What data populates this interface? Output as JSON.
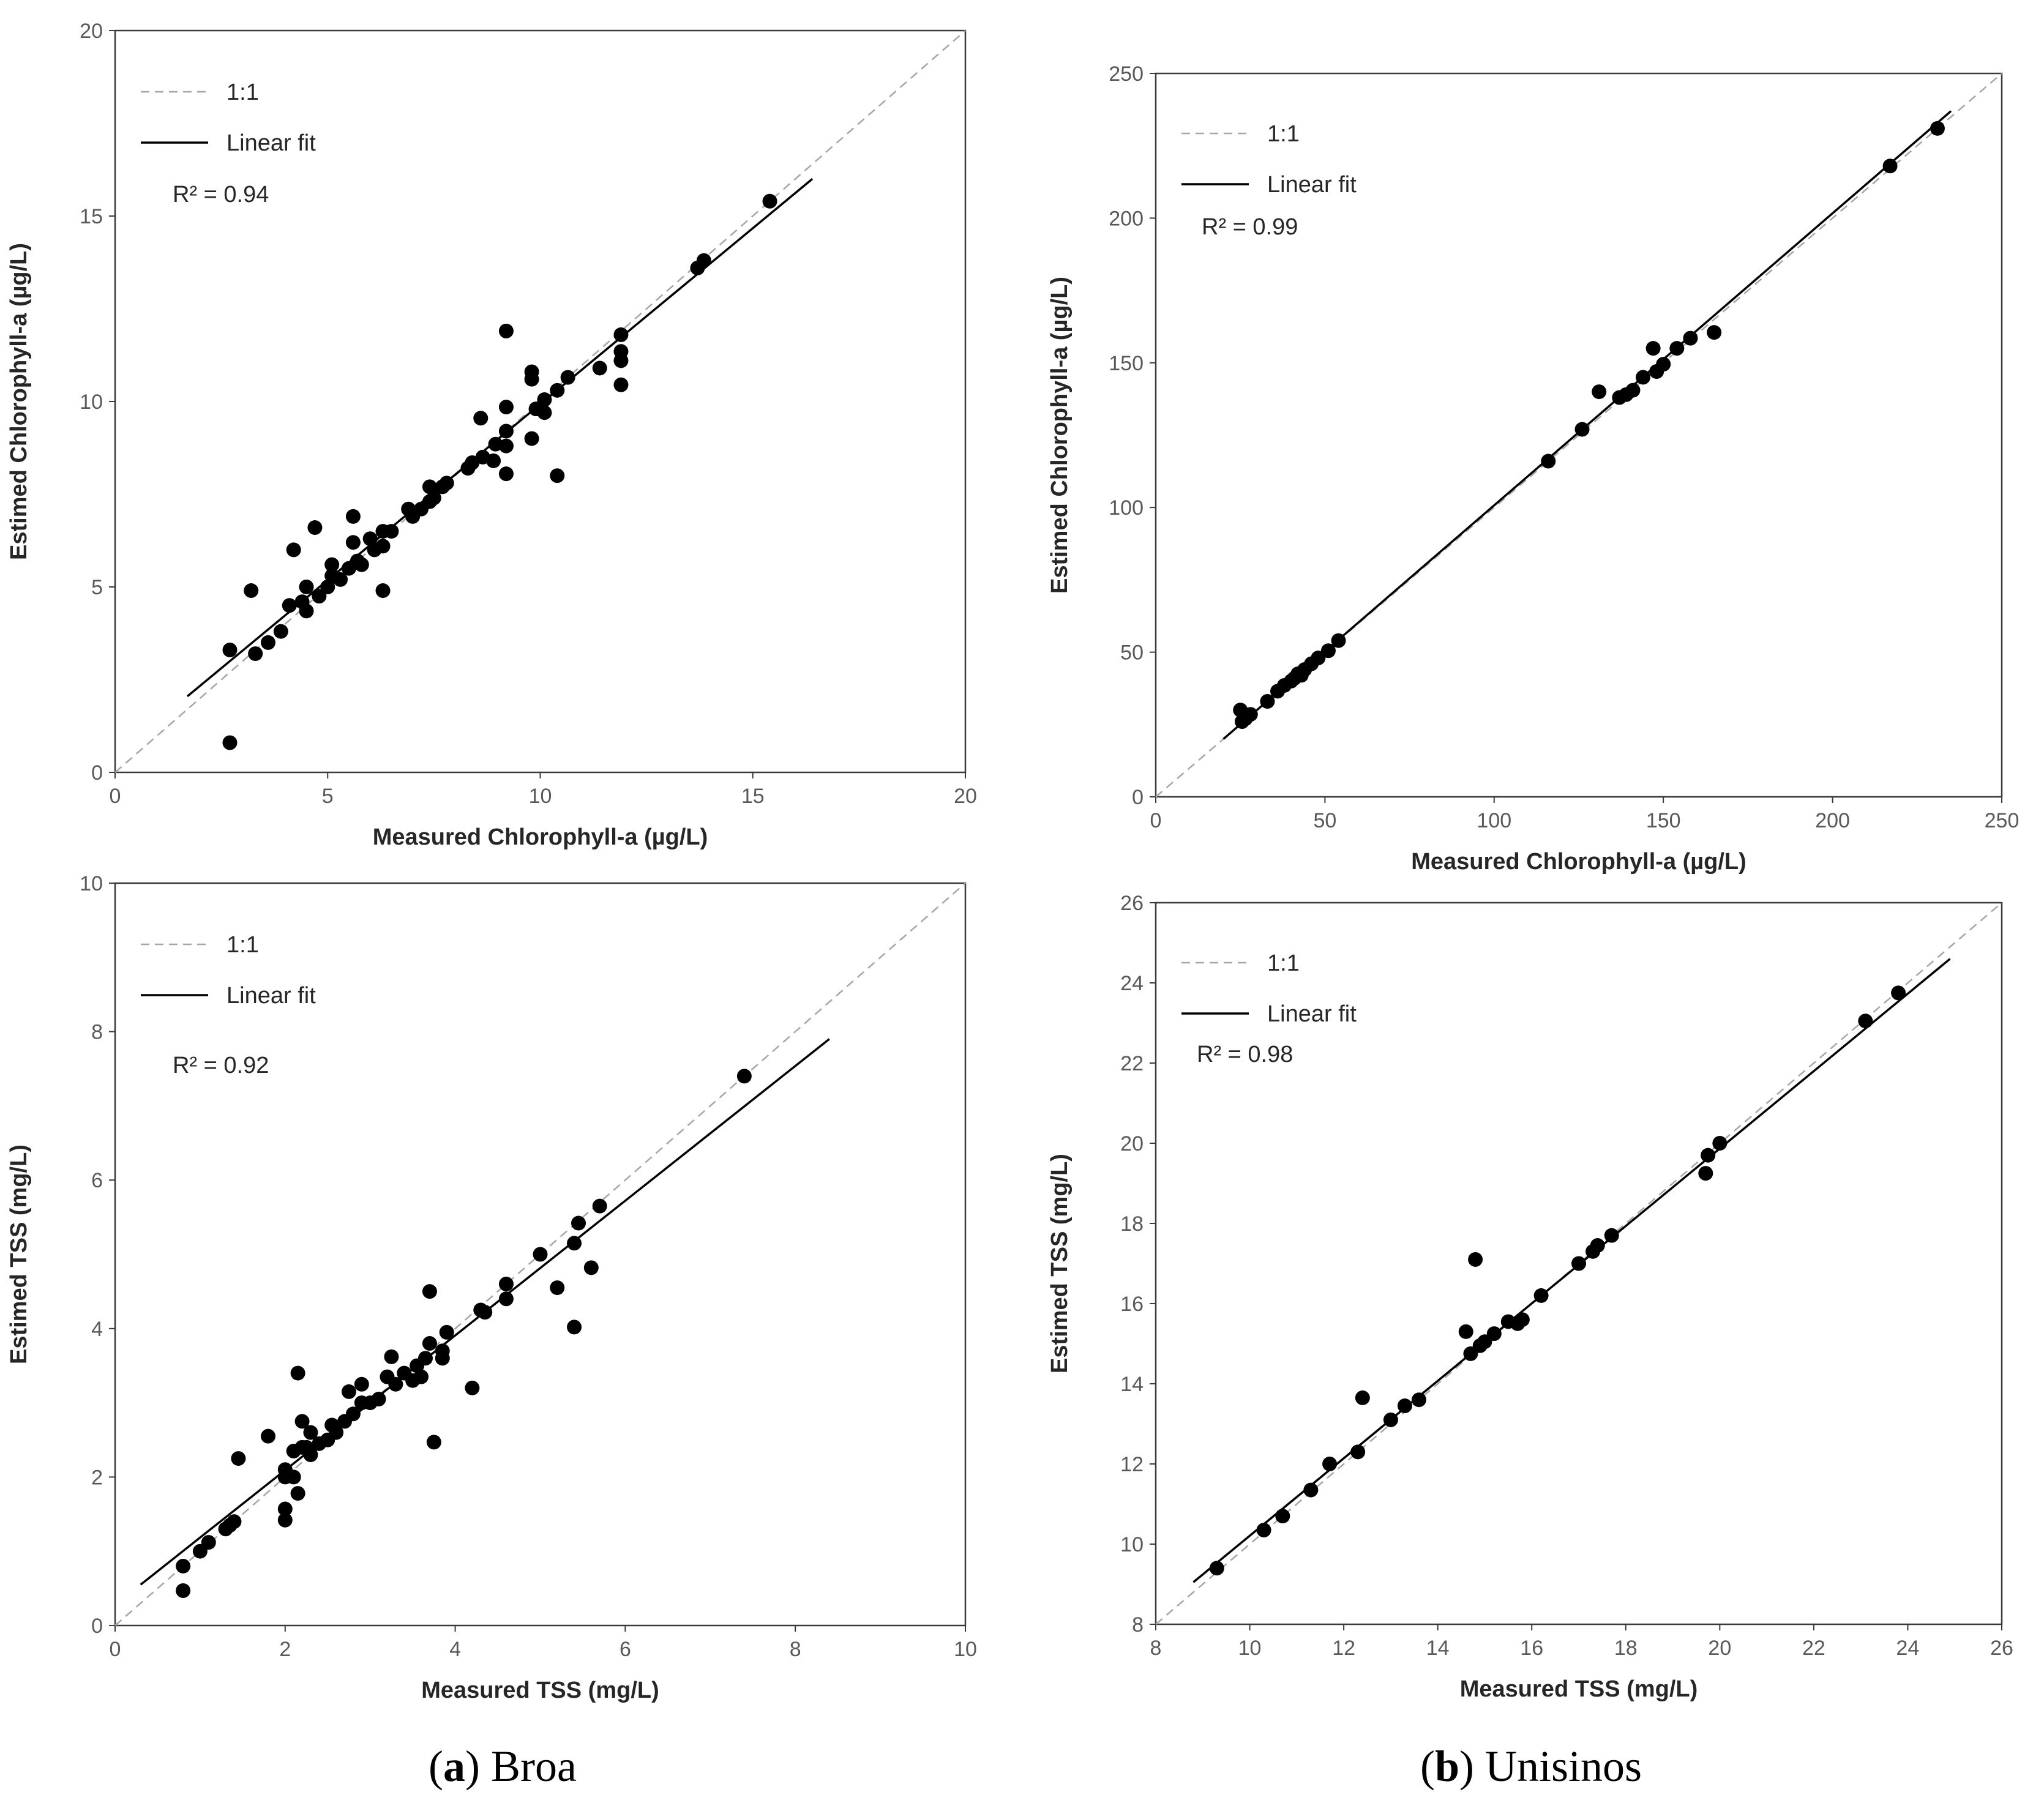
{
  "captions": {
    "a": {
      "letter": "(a)",
      "name": "Broa"
    },
    "b": {
      "letter": "(b)",
      "name": "Unisinos"
    }
  },
  "chart_data": [
    {
      "id": "broa-chla",
      "type": "scatter",
      "xlabel": "Measured Chlorophyll-a (µg/L)",
      "ylabel": "Estimed Chlorophyll-a (µg/L)",
      "xlim": [
        0,
        20
      ],
      "ylim": [
        0,
        20
      ],
      "xticks": [
        0,
        5,
        10,
        15,
        20
      ],
      "yticks": [
        0,
        5,
        10,
        15,
        20
      ],
      "legend": [
        "1:1",
        "Linear fit"
      ],
      "annotation": "R² = 0.94",
      "fit": {
        "x": [
          1.7,
          16.4
        ],
        "y": [
          2.05,
          16.0
        ]
      },
      "points": [
        [
          2.7,
          3.3
        ],
        [
          2.7,
          0.8
        ],
        [
          3.2,
          4.9
        ],
        [
          3.3,
          3.2
        ],
        [
          3.6,
          3.5
        ],
        [
          3.9,
          3.8
        ],
        [
          4.1,
          4.5
        ],
        [
          4.2,
          6.0
        ],
        [
          4.4,
          4.6
        ],
        [
          4.5,
          5.0
        ],
        [
          4.5,
          4.35
        ],
        [
          4.7,
          6.6
        ],
        [
          4.8,
          4.75
        ],
        [
          5.0,
          5.0
        ],
        [
          5.1,
          5.6
        ],
        [
          5.1,
          5.3
        ],
        [
          5.3,
          5.2
        ],
        [
          5.5,
          5.5
        ],
        [
          5.6,
          6.9
        ],
        [
          5.6,
          6.2
        ],
        [
          5.7,
          5.7
        ],
        [
          5.8,
          5.6
        ],
        [
          6.0,
          6.3
        ],
        [
          6.1,
          6.0
        ],
        [
          6.3,
          6.5
        ],
        [
          6.3,
          4.9
        ],
        [
          6.3,
          6.1
        ],
        [
          6.5,
          6.5
        ],
        [
          6.9,
          7.1
        ],
        [
          7.0,
          6.9
        ],
        [
          7.2,
          7.1
        ],
        [
          7.4,
          7.3
        ],
        [
          7.4,
          7.7
        ],
        [
          7.5,
          7.4
        ],
        [
          7.7,
          7.7
        ],
        [
          7.8,
          7.8
        ],
        [
          8.3,
          8.2
        ],
        [
          8.4,
          8.35
        ],
        [
          8.6,
          9.55
        ],
        [
          8.65,
          8.5
        ],
        [
          8.9,
          8.4
        ],
        [
          8.95,
          8.85
        ],
        [
          9.2,
          9.2
        ],
        [
          9.2,
          9.85
        ],
        [
          9.2,
          8.05
        ],
        [
          9.2,
          11.9
        ],
        [
          9.2,
          8.8
        ],
        [
          9.8,
          9.0
        ],
        [
          9.8,
          10.8
        ],
        [
          9.8,
          10.6
        ],
        [
          9.9,
          9.8
        ],
        [
          10.1,
          10.05
        ],
        [
          10.1,
          9.7
        ],
        [
          10.4,
          8.0
        ],
        [
          10.4,
          10.3
        ],
        [
          10.65,
          10.65
        ],
        [
          11.4,
          10.9
        ],
        [
          11.9,
          11.8
        ],
        [
          11.9,
          11.35
        ],
        [
          11.9,
          11.1
        ],
        [
          11.9,
          10.45
        ],
        [
          13.7,
          13.6
        ],
        [
          13.85,
          13.8
        ],
        [
          15.4,
          15.4
        ]
      ]
    },
    {
      "id": "unisinos-chla",
      "type": "scatter",
      "xlabel": "Measured Chlorophyll-a (µg/L)",
      "ylabel": "Estimed Chlorophyll-a (µg/L)",
      "xlim": [
        0,
        250
      ],
      "ylim": [
        0,
        250
      ],
      "xticks": [
        0,
        50,
        100,
        150,
        200,
        250
      ],
      "yticks": [
        0,
        50,
        100,
        150,
        200,
        250
      ],
      "legend": [
        "1:1",
        "Linear fit"
      ],
      "annotation": "R² = 0.99",
      "fit": {
        "x": [
          20,
          235
        ],
        "y": [
          20,
          237
        ]
      },
      "points": [
        [
          25,
          30
        ],
        [
          25.5,
          26
        ],
        [
          26.5,
          27
        ],
        [
          28,
          28.5
        ],
        [
          33,
          33
        ],
        [
          36,
          36.5
        ],
        [
          38,
          38.5
        ],
        [
          40,
          40
        ],
        [
          41,
          41
        ],
        [
          42,
          42.5
        ],
        [
          43,
          42
        ],
        [
          44,
          44
        ],
        [
          46,
          46
        ],
        [
          48,
          48
        ],
        [
          51,
          50.5
        ],
        [
          54,
          54
        ],
        [
          116,
          116
        ],
        [
          126,
          127
        ],
        [
          131,
          140
        ],
        [
          137,
          138
        ],
        [
          139,
          139
        ],
        [
          141,
          140.5
        ],
        [
          144,
          145
        ],
        [
          147,
          155
        ],
        [
          148,
          147
        ],
        [
          150,
          149.5
        ],
        [
          154,
          155
        ],
        [
          158,
          158.5
        ],
        [
          165,
          160.5
        ],
        [
          217,
          218
        ],
        [
          231,
          231
        ]
      ]
    },
    {
      "id": "broa-tss",
      "type": "scatter",
      "xlabel": "Measured TSS (mg/L)",
      "ylabel": "Estimed TSS (mg/L)",
      "xlim": [
        0,
        10
      ],
      "ylim": [
        0,
        10
      ],
      "xticks": [
        0,
        2,
        4,
        6,
        8,
        10
      ],
      "yticks": [
        0,
        2,
        4,
        6,
        8,
        10
      ],
      "legend": [
        "1:1",
        "Linear fit"
      ],
      "annotation": "R² = 0.92",
      "fit": {
        "x": [
          0.3,
          8.4
        ],
        "y": [
          0.55,
          7.9
        ]
      },
      "points": [
        [
          0.8,
          0.8
        ],
        [
          0.8,
          0.47
        ],
        [
          1.0,
          1.0
        ],
        [
          1.1,
          1.12
        ],
        [
          1.3,
          1.3
        ],
        [
          1.35,
          1.35
        ],
        [
          1.4,
          1.4
        ],
        [
          1.45,
          2.25
        ],
        [
          1.8,
          2.55
        ],
        [
          2.0,
          2.0
        ],
        [
          2.0,
          2.1
        ],
        [
          2.0,
          1.57
        ],
        [
          2.0,
          1.42
        ],
        [
          2.1,
          2.35
        ],
        [
          2.1,
          2.0
        ],
        [
          2.15,
          3.4
        ],
        [
          2.15,
          1.78
        ],
        [
          2.2,
          2.75
        ],
        [
          2.2,
          2.4
        ],
        [
          2.25,
          2.4
        ],
        [
          2.3,
          2.3
        ],
        [
          2.3,
          2.6
        ],
        [
          2.4,
          2.45
        ],
        [
          2.5,
          2.5
        ],
        [
          2.55,
          2.7
        ],
        [
          2.6,
          2.6
        ],
        [
          2.7,
          2.75
        ],
        [
          2.75,
          3.15
        ],
        [
          2.8,
          2.85
        ],
        [
          2.9,
          3.0
        ],
        [
          2.9,
          3.25
        ],
        [
          3.0,
          3.0
        ],
        [
          3.1,
          3.05
        ],
        [
          3.2,
          3.35
        ],
        [
          3.25,
          3.62
        ],
        [
          3.3,
          3.25
        ],
        [
          3.4,
          3.4
        ],
        [
          3.5,
          3.3
        ],
        [
          3.55,
          3.5
        ],
        [
          3.6,
          3.35
        ],
        [
          3.65,
          3.6
        ],
        [
          3.7,
          4.5
        ],
        [
          3.7,
          3.8
        ],
        [
          3.75,
          2.47
        ],
        [
          3.85,
          3.7
        ],
        [
          3.85,
          3.6
        ],
        [
          3.9,
          3.95
        ],
        [
          4.2,
          3.2
        ],
        [
          4.3,
          4.25
        ],
        [
          4.35,
          4.22
        ],
        [
          4.6,
          4.6
        ],
        [
          4.6,
          4.4
        ],
        [
          5.0,
          5.0
        ],
        [
          5.2,
          4.55
        ],
        [
          5.4,
          5.15
        ],
        [
          5.4,
          4.02
        ],
        [
          5.45,
          5.42
        ],
        [
          5.6,
          4.82
        ],
        [
          5.7,
          5.65
        ],
        [
          7.4,
          7.4
        ]
      ]
    },
    {
      "id": "unisinos-tss",
      "type": "scatter",
      "xlabel": "Measured TSS (mg/L)",
      "ylabel": "Estimed TSS (mg/L)",
      "xlim": [
        8,
        26
      ],
      "ylim": [
        8,
        26
      ],
      "xticks": [
        8,
        10,
        12,
        14,
        16,
        18,
        20,
        22,
        24,
        26
      ],
      "yticks": [
        8,
        10,
        12,
        14,
        16,
        18,
        20,
        22,
        24,
        26
      ],
      "legend": [
        "1:1",
        "Linear fit"
      ],
      "annotation": "R² = 0.98",
      "fit": {
        "x": [
          8.8,
          24.9
        ],
        "y": [
          9.05,
          24.6
        ]
      },
      "points": [
        [
          9.3,
          9.4
        ],
        [
          10.3,
          10.35
        ],
        [
          10.7,
          10.7
        ],
        [
          11.3,
          11.35
        ],
        [
          11.7,
          12.0
        ],
        [
          12.3,
          12.3
        ],
        [
          12.4,
          13.65
        ],
        [
          13.0,
          13.1
        ],
        [
          13.3,
          13.45
        ],
        [
          13.6,
          13.6
        ],
        [
          14.6,
          15.3
        ],
        [
          14.7,
          14.75
        ],
        [
          14.8,
          17.1
        ],
        [
          14.9,
          14.95
        ],
        [
          15.0,
          15.05
        ],
        [
          15.2,
          15.25
        ],
        [
          15.5,
          15.55
        ],
        [
          15.7,
          15.5
        ],
        [
          15.8,
          15.6
        ],
        [
          16.2,
          16.2
        ],
        [
          17.0,
          17.0
        ],
        [
          17.3,
          17.3
        ],
        [
          17.4,
          17.45
        ],
        [
          17.7,
          17.7
        ],
        [
          19.7,
          19.25
        ],
        [
          19.75,
          19.7
        ],
        [
          20.0,
          20.0
        ],
        [
          23.1,
          23.05
        ],
        [
          23.8,
          23.75
        ]
      ]
    }
  ]
}
